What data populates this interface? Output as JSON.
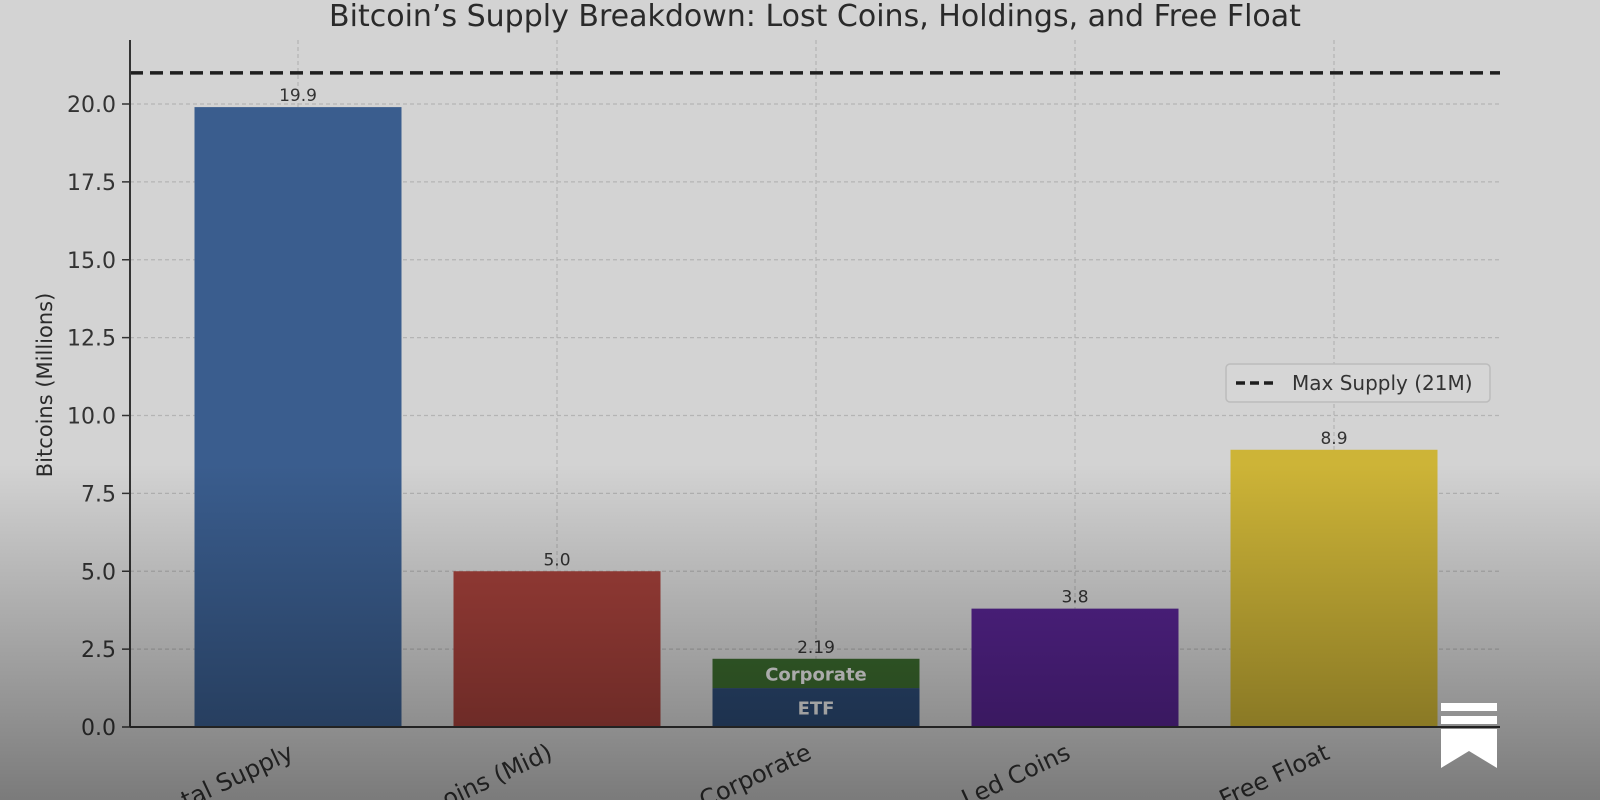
{
  "chart_data": {
    "type": "bar",
    "title": "Bitcoin’s Supply Breakdown: Lost Coins, Holdings, and Free Float",
    "xlabel": "",
    "ylabel": "Bitcoins (Millions)",
    "ylim": [
      0,
      22
    ],
    "yticks": [
      "0.0",
      "2.5",
      "5.0",
      "7.5",
      "10.0",
      "12.5",
      "15.0",
      "17.5",
      "20.0"
    ],
    "categories": [
      "Total Supply",
      "Lost Coins (Mid)",
      "ETF + Corporate",
      "Controlled Coins",
      "Free Float"
    ],
    "category_labels_visible": [
      "tal Supply",
      "oins (Mid)",
      "Corporate",
      "Led Coins",
      "Free Float"
    ],
    "bars": [
      {
        "category": "Total Supply",
        "value": 19.9,
        "label": "19.9",
        "color": "#3a5d8e"
      },
      {
        "category": "Lost Coins (Mid)",
        "value": 5.0,
        "label": "5.0",
        "color": "#a3403a"
      },
      {
        "category": "ETF + Corporate",
        "value": 2.19,
        "label": "2.19",
        "stack": [
          {
            "name": "ETF",
            "value": 1.25,
            "color": "#2c4a74"
          },
          {
            "name": "Corporate",
            "value": 0.94,
            "color": "#3b6a2e"
          }
        ]
      },
      {
        "category": "Controlled Coins",
        "value": 3.8,
        "label": "3.8",
        "color": "#56248f"
      },
      {
        "category": "Free Float",
        "value": 8.9,
        "label": "8.9",
        "color": "#cdb437"
      }
    ],
    "reference_line": {
      "value": 21,
      "label": "Max Supply (21M)",
      "style": "dashed"
    },
    "legend": {
      "placement": "center-right",
      "entries": [
        "Max Supply (21M)"
      ]
    },
    "grid": true
  }
}
